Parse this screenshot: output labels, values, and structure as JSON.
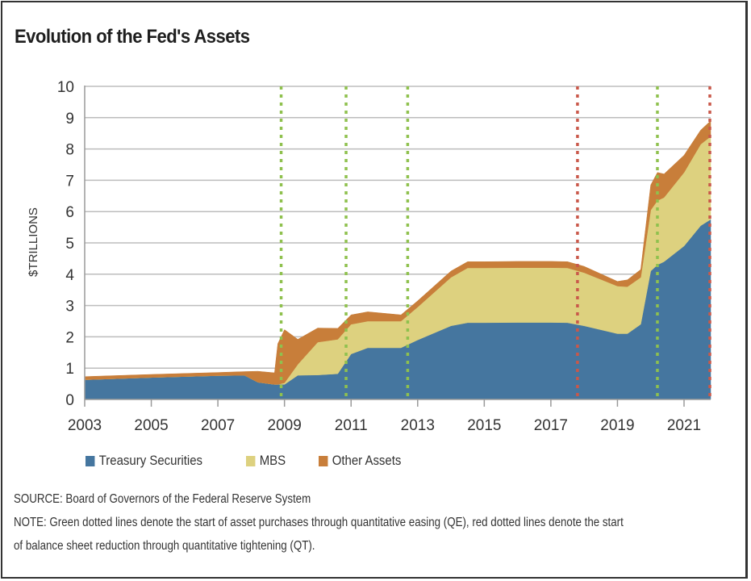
{
  "chart_data": {
    "type": "area",
    "stacked": true,
    "title": "Evolution of the Fed's Assets",
    "xlabel": "",
    "ylabel": "$TRILLIONS",
    "xlim": [
      2003,
      2021.8
    ],
    "ylim": [
      0,
      10
    ],
    "yticks": [
      "0",
      "1",
      "2",
      "3",
      "4",
      "5",
      "6",
      "7",
      "8",
      "9",
      "10"
    ],
    "xticks": [
      "2003",
      "2005",
      "2007",
      "2009",
      "2011",
      "2013",
      "2015",
      "2017",
      "2019",
      "2021"
    ],
    "grid": "horizontal",
    "legend_position": "bottom",
    "x": [
      2003.0,
      2005.0,
      2007.0,
      2007.8,
      2008.2,
      2008.7,
      2008.8,
      2009.0,
      2009.4,
      2010.0,
      2010.6,
      2011.0,
      2011.5,
      2012.0,
      2012.5,
      2013.0,
      2014.0,
      2014.5,
      2015.0,
      2016.0,
      2017.0,
      2017.5,
      2018.0,
      2019.0,
      2019.3,
      2019.7,
      2020.0,
      2020.2,
      2020.4,
      2021.0,
      2021.5,
      2021.8
    ],
    "series": [
      {
        "name": "Treasury Securities",
        "color": "#45769f",
        "values": [
          0.63,
          0.7,
          0.76,
          0.77,
          0.55,
          0.48,
          0.48,
          0.48,
          0.77,
          0.78,
          0.82,
          1.45,
          1.65,
          1.65,
          1.65,
          1.9,
          2.35,
          2.45,
          2.45,
          2.46,
          2.46,
          2.45,
          2.35,
          2.1,
          2.1,
          2.4,
          4.1,
          4.3,
          4.4,
          4.9,
          5.55,
          5.75
        ]
      },
      {
        "name": "MBS",
        "color": "#ddd17f",
        "values": [
          0.0,
          0.0,
          0.0,
          0.0,
          0.0,
          0.0,
          0.0,
          0.05,
          0.35,
          1.05,
          1.1,
          0.95,
          0.85,
          0.85,
          0.85,
          1.05,
          1.55,
          1.75,
          1.75,
          1.75,
          1.75,
          1.75,
          1.7,
          1.52,
          1.5,
          1.5,
          1.95,
          2.05,
          2.05,
          2.35,
          2.6,
          2.65
        ]
      },
      {
        "name": "Other Assets",
        "color": "#c87e3a",
        "values": [
          0.1,
          0.1,
          0.1,
          0.12,
          0.35,
          0.37,
          1.3,
          1.7,
          0.8,
          0.45,
          0.35,
          0.3,
          0.3,
          0.25,
          0.2,
          0.2,
          0.2,
          0.2,
          0.2,
          0.2,
          0.2,
          0.2,
          0.2,
          0.15,
          0.22,
          0.25,
          0.8,
          0.9,
          0.75,
          0.55,
          0.45,
          0.5
        ]
      }
    ],
    "reference_lines": [
      {
        "x": 2008.9,
        "color": "#8fc14e",
        "label": "QE"
      },
      {
        "x": 2010.85,
        "color": "#8fc14e",
        "label": "QE"
      },
      {
        "x": 2012.7,
        "color": "#8fc14e",
        "label": "QE"
      },
      {
        "x": 2017.8,
        "color": "#c9584a",
        "label": "QT"
      },
      {
        "x": 2020.2,
        "color": "#8fc14e",
        "label": "QE"
      },
      {
        "x": 2022.45,
        "color": "#c9584a",
        "label": "QT"
      }
    ]
  },
  "source": "SOURCE: Board of Governors of the Federal Reserve System",
  "note_line1": "NOTE: Green dotted lines denote the start of asset purchases through quantitative easing (QE), red dotted lines denote the start",
  "note_line2": "of balance sheet reduction through quantitative tightening (QT)."
}
